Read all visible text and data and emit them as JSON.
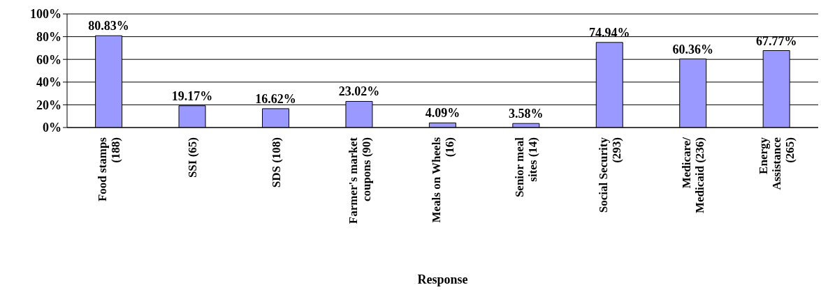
{
  "chart_data": {
    "type": "bar",
    "xlabel": "Response",
    "categories": [
      "Food stamps (188)",
      "SSI (65)",
      "SDS (108)",
      "Farmer's market coupons (90)",
      "Meals on Wheels (16)",
      "Senior meal sites (14)",
      "Social Security (293)",
      "Medicare/Medicaid (236)",
      "Energy Assistance (265)"
    ],
    "values": [
      80.83,
      19.17,
      16.62,
      23.02,
      4.09,
      3.58,
      74.94,
      60.36,
      67.77
    ],
    "value_labels": [
      "80.83%",
      "19.17%",
      "16.62%",
      "23.02%",
      "4.09%",
      "3.58%",
      "74.94%",
      "60.36%",
      "67.77%"
    ],
    "color": "#9999ff",
    "ylim": [
      0,
      100
    ],
    "yticks": [
      {
        "value": 0,
        "label": "0%"
      },
      {
        "value": 20,
        "label": "20%"
      },
      {
        "value": 40,
        "label": "40%"
      },
      {
        "value": 60,
        "label": "60%"
      },
      {
        "value": 80,
        "label": "80%"
      },
      {
        "value": 100,
        "label": "100%"
      }
    ],
    "grid": "y",
    "legend": false
  }
}
